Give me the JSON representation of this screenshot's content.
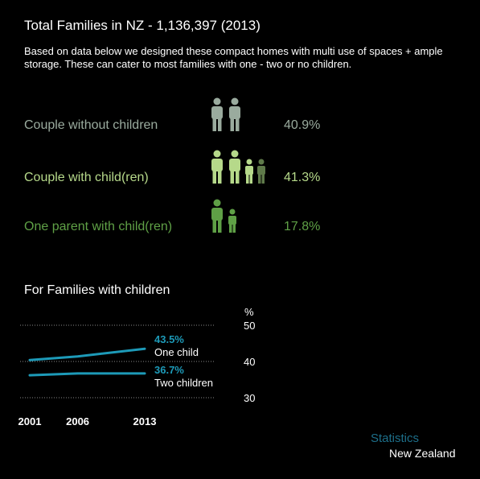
{
  "title": "Total Families in NZ - 1,136,397 (2013)",
  "intro": "Based on data below we designed these compact homes with multi use of spaces + ample storage. These can cater to most families with one - two or no children.",
  "families": [
    {
      "label": "Couple without children",
      "pct": "40.9%",
      "color": "#9aab9e",
      "icon": "two-adults-icon"
    },
    {
      "label": "Couple with child(ren)",
      "pct": "41.3%",
      "color": "#b6d98a",
      "icon": "two-adults-two-children-icon"
    },
    {
      "label": "One parent with child(ren)",
      "pct": "17.8%",
      "color": "#5fa046",
      "icon": "one-adult-one-child-icon"
    }
  ],
  "sub_title": "For Families with children",
  "chart_data": {
    "type": "line",
    "x": [
      2001,
      2006,
      2013
    ],
    "x_tick_labels": [
      "2001",
      "2006",
      "2013"
    ],
    "ylabel": "%",
    "y_tick_labels": [
      "50",
      "40",
      "30"
    ],
    "ylim": [
      30,
      50
    ],
    "grid": true,
    "series": [
      {
        "name": "One child",
        "values": [
          40.4,
          41.4,
          43.5
        ],
        "end_label": "43.5%",
        "color": "#1d9ab8"
      },
      {
        "name": "Two children",
        "values": [
          36.2,
          36.7,
          36.7
        ],
        "end_label": "36.7%",
        "color": "#1d9ab8"
      }
    ]
  },
  "footer": {
    "line1": "Statistics",
    "line2": "New Zealand",
    "accent": "#1d6f8a"
  }
}
